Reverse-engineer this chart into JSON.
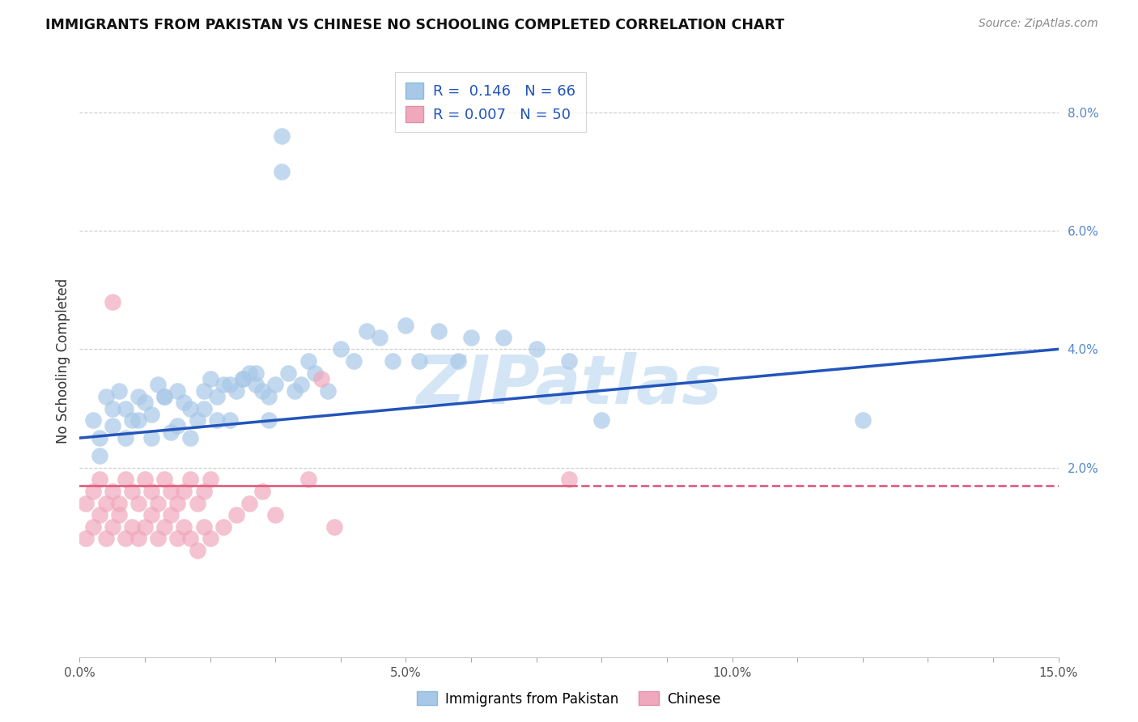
{
  "title": "IMMIGRANTS FROM PAKISTAN VS CHINESE NO SCHOOLING COMPLETED CORRELATION CHART",
  "source": "Source: ZipAtlas.com",
  "ylabel": "No Schooling Completed",
  "legend_label1": "Immigrants from Pakistan",
  "legend_label2": "Chinese",
  "r1": "0.146",
  "n1": "66",
  "r2": "0.007",
  "n2": "50",
  "xlim": [
    0.0,
    0.15
  ],
  "ylim": [
    -0.012,
    0.088
  ],
  "color_pakistan": "#a8c8e8",
  "color_chinese": "#f0a8bc",
  "color_pakistan_line": "#2255bb",
  "color_chinese_line": "#e06080",
  "watermark_text": "ZIPatlas",
  "watermark_color": "#d0e4f4",
  "pak_line_x": [
    0.0,
    0.15
  ],
  "pak_line_y": [
    0.025,
    0.04
  ],
  "chi_line_x": [
    0.0,
    0.15
  ],
  "chi_line_y": [
    0.017,
    0.017
  ],
  "pak_x": [
    0.002,
    0.003,
    0.004,
    0.005,
    0.006,
    0.007,
    0.008,
    0.009,
    0.01,
    0.011,
    0.012,
    0.013,
    0.014,
    0.015,
    0.016,
    0.017,
    0.018,
    0.019,
    0.02,
    0.021,
    0.022,
    0.023,
    0.024,
    0.025,
    0.026,
    0.027,
    0.028,
    0.029,
    0.03,
    0.031,
    0.032,
    0.033,
    0.034,
    0.035,
    0.036,
    0.038,
    0.04,
    0.042,
    0.044,
    0.046,
    0.048,
    0.05,
    0.052,
    0.055,
    0.058,
    0.06,
    0.065,
    0.07,
    0.075,
    0.08,
    0.003,
    0.005,
    0.007,
    0.009,
    0.011,
    0.013,
    0.015,
    0.017,
    0.019,
    0.021,
    0.023,
    0.025,
    0.027,
    0.029,
    0.031,
    0.12
  ],
  "pak_y": [
    0.028,
    0.025,
    0.032,
    0.027,
    0.033,
    0.03,
    0.028,
    0.032,
    0.031,
    0.029,
    0.034,
    0.032,
    0.026,
    0.033,
    0.031,
    0.03,
    0.028,
    0.033,
    0.035,
    0.032,
    0.034,
    0.028,
    0.033,
    0.035,
    0.036,
    0.034,
    0.033,
    0.028,
    0.034,
    0.076,
    0.036,
    0.033,
    0.034,
    0.038,
    0.036,
    0.033,
    0.04,
    0.038,
    0.043,
    0.042,
    0.038,
    0.044,
    0.038,
    0.043,
    0.038,
    0.042,
    0.042,
    0.04,
    0.038,
    0.028,
    0.022,
    0.03,
    0.025,
    0.028,
    0.025,
    0.032,
    0.027,
    0.025,
    0.03,
    0.028,
    0.034,
    0.035,
    0.036,
    0.032,
    0.07,
    0.028
  ],
  "chi_x": [
    0.001,
    0.002,
    0.003,
    0.004,
    0.005,
    0.006,
    0.007,
    0.008,
    0.009,
    0.01,
    0.011,
    0.012,
    0.013,
    0.014,
    0.015,
    0.016,
    0.017,
    0.018,
    0.019,
    0.02,
    0.001,
    0.002,
    0.003,
    0.004,
    0.005,
    0.006,
    0.007,
    0.008,
    0.009,
    0.01,
    0.011,
    0.012,
    0.013,
    0.014,
    0.015,
    0.016,
    0.017,
    0.018,
    0.019,
    0.02,
    0.022,
    0.024,
    0.026,
    0.028,
    0.03,
    0.035,
    0.037,
    0.039,
    0.005,
    0.075
  ],
  "chi_y": [
    0.014,
    0.016,
    0.018,
    0.014,
    0.016,
    0.014,
    0.018,
    0.016,
    0.014,
    0.018,
    0.016,
    0.014,
    0.018,
    0.016,
    0.014,
    0.016,
    0.018,
    0.014,
    0.016,
    0.018,
    0.008,
    0.01,
    0.012,
    0.008,
    0.01,
    0.012,
    0.008,
    0.01,
    0.008,
    0.01,
    0.012,
    0.008,
    0.01,
    0.012,
    0.008,
    0.01,
    0.008,
    0.006,
    0.01,
    0.008,
    0.01,
    0.012,
    0.014,
    0.016,
    0.012,
    0.018,
    0.035,
    0.01,
    0.048,
    0.018
  ]
}
